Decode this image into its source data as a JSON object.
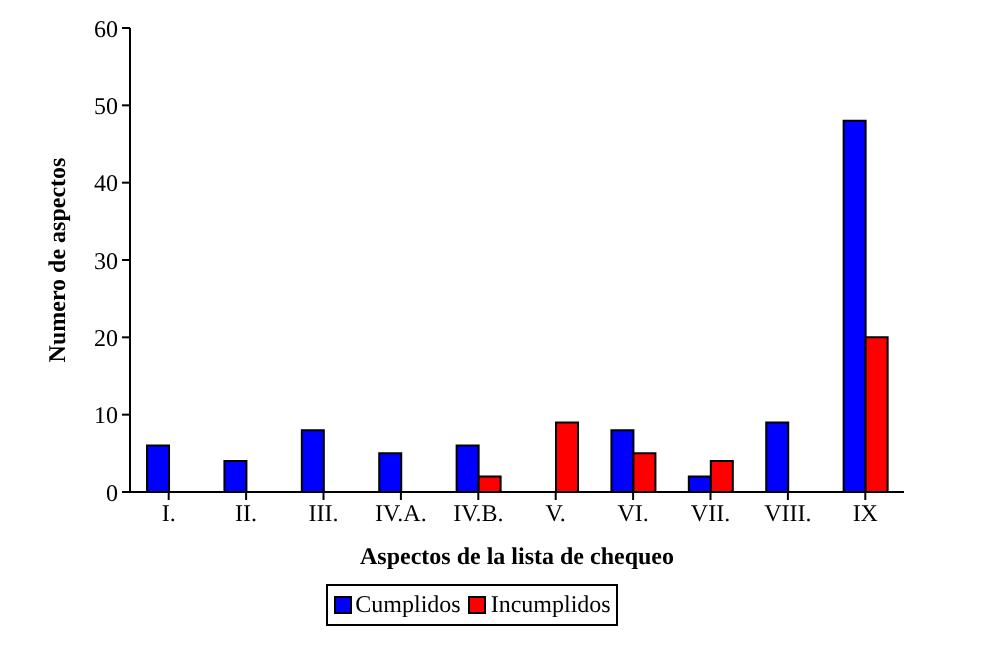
{
  "chart_data": {
    "type": "bar",
    "xlabel": "Aspectos de la lista de chequeo",
    "ylabel": "Numero  de  aspectos",
    "categories": [
      "I.",
      "II.",
      "III.",
      "IV.A.",
      "IV.B.",
      "V.",
      "VI.",
      "VII.",
      "VIII.",
      "IX"
    ],
    "series": [
      {
        "name": "Cumplidos",
        "color": "#0000ff",
        "values": [
          6,
          4,
          8,
          5,
          6,
          0,
          8,
          2,
          9,
          48
        ]
      },
      {
        "name": "Incumplidos",
        "color": "#ff0000",
        "values": [
          0,
          0,
          0,
          0,
          2,
          9,
          5,
          4,
          0,
          20
        ]
      }
    ],
    "ylim": [
      0,
      60
    ],
    "yticks": [
      0,
      10,
      20,
      30,
      40,
      50,
      60
    ],
    "grid": false,
    "legend": "bottom"
  }
}
